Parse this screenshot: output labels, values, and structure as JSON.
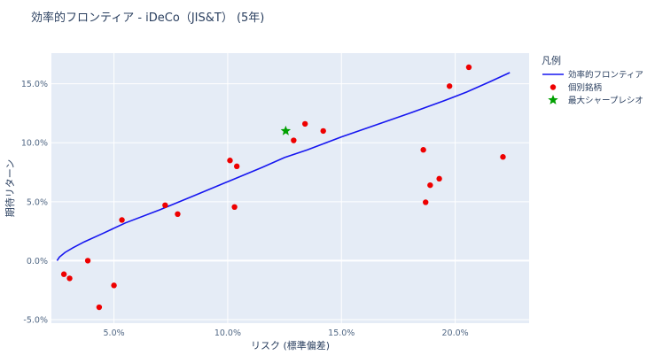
{
  "chart_data": {
    "type": "scatter",
    "title": "効率的フロンティア - iDeCo（JIS&T） (5年)",
    "xlabel": "リスク (標準偏差)",
    "ylabel": "期待リターン",
    "xlim": [
      0.0225,
      0.2325
    ],
    "ylim": [
      -0.053,
      0.176
    ],
    "x_ticks": [
      {
        "value": 0.05,
        "label": "5.0%"
      },
      {
        "value": 0.1,
        "label": "10.0%"
      },
      {
        "value": 0.15,
        "label": "15.0%"
      },
      {
        "value": 0.2,
        "label": "20.0%"
      }
    ],
    "y_ticks": [
      {
        "value": -0.05,
        "label": "-5.0%"
      },
      {
        "value": 0.0,
        "label": "0.0%"
      },
      {
        "value": 0.05,
        "label": "5.0%"
      },
      {
        "value": 0.1,
        "label": "10.0%"
      },
      {
        "value": 0.15,
        "label": "15.0%"
      }
    ],
    "grid": true,
    "legend": {
      "title": "凡例",
      "placement": "right",
      "entries": [
        {
          "name": "効率的フロンティア",
          "marker": "line",
          "color": "#1616f0"
        },
        {
          "name": "個別銘柄",
          "marker": "circle",
          "color": "#ee0000"
        },
        {
          "name": "最大シャープレシオ",
          "marker": "star",
          "color": "#00a000"
        }
      ]
    },
    "series": [
      {
        "name": "効率的フロンティア",
        "kind": "line",
        "color": "#1616f0",
        "points": [
          [
            0.025,
            0.0
          ],
          [
            0.026,
            0.003
          ],
          [
            0.0285,
            0.007
          ],
          [
            0.032,
            0.011
          ],
          [
            0.037,
            0.016
          ],
          [
            0.045,
            0.023
          ],
          [
            0.055,
            0.032
          ],
          [
            0.07,
            0.043
          ],
          [
            0.085,
            0.055
          ],
          [
            0.1,
            0.067
          ],
          [
            0.115,
            0.079
          ],
          [
            0.125,
            0.0875
          ],
          [
            0.135,
            0.094
          ],
          [
            0.15,
            0.105
          ],
          [
            0.165,
            0.115
          ],
          [
            0.18,
            0.125
          ],
          [
            0.195,
            0.1355
          ],
          [
            0.205,
            0.143
          ],
          [
            0.215,
            0.1515
          ],
          [
            0.224,
            0.1595
          ]
        ]
      },
      {
        "name": "個別銘柄",
        "kind": "scatter",
        "color": "#ee0000",
        "points": [
          [
            0.028,
            -0.0115
          ],
          [
            0.0305,
            -0.015
          ],
          [
            0.0385,
            0.0
          ],
          [
            0.0435,
            -0.0395
          ],
          [
            0.05,
            -0.021
          ],
          [
            0.0535,
            0.0345
          ],
          [
            0.0725,
            0.047
          ],
          [
            0.078,
            0.0395
          ],
          [
            0.101,
            0.085
          ],
          [
            0.104,
            0.08
          ],
          [
            0.103,
            0.0455
          ],
          [
            0.129,
            0.102
          ],
          [
            0.134,
            0.116
          ],
          [
            0.142,
            0.11
          ],
          [
            0.186,
            0.094
          ],
          [
            0.187,
            0.0495
          ],
          [
            0.189,
            0.064
          ],
          [
            0.193,
            0.0695
          ],
          [
            0.1975,
            0.148
          ],
          [
            0.206,
            0.164
          ],
          [
            0.221,
            0.088
          ]
        ]
      },
      {
        "name": "最大シャープレシオ",
        "kind": "scatter",
        "color": "#00a000",
        "points": [
          [
            0.1255,
            0.11
          ]
        ]
      }
    ]
  }
}
